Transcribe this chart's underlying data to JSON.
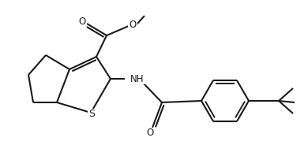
{
  "background_color": "#ffffff",
  "line_color": "#1a1a1a",
  "line_width": 1.5,
  "font_size": 8.5,
  "atoms": {
    "S_label": "S",
    "NH_label": "NH",
    "O1_label": "O",
    "O2_label": "O"
  }
}
